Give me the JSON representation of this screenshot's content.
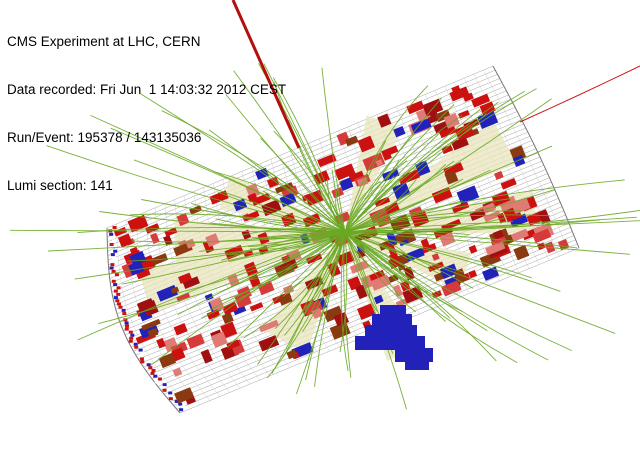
{
  "info": {
    "experiment": "CMS Experiment at LHC, CERN",
    "date": "Data recorded: Fri Jun  1 14:03:32 2012 CEST",
    "run_event": "Run/Event: 195378 / 143135036",
    "lumi_section": "Lumi section: 141"
  },
  "colors": {
    "background": "#ffffff",
    "track": "#6aa824",
    "ecal_deposit": "#cc1111",
    "hcal_deposit": "#2222bb",
    "muon": "#b50e0e",
    "energy_cone": "#e8e6bb",
    "detector_outline": "#9a9a9a"
  }
}
